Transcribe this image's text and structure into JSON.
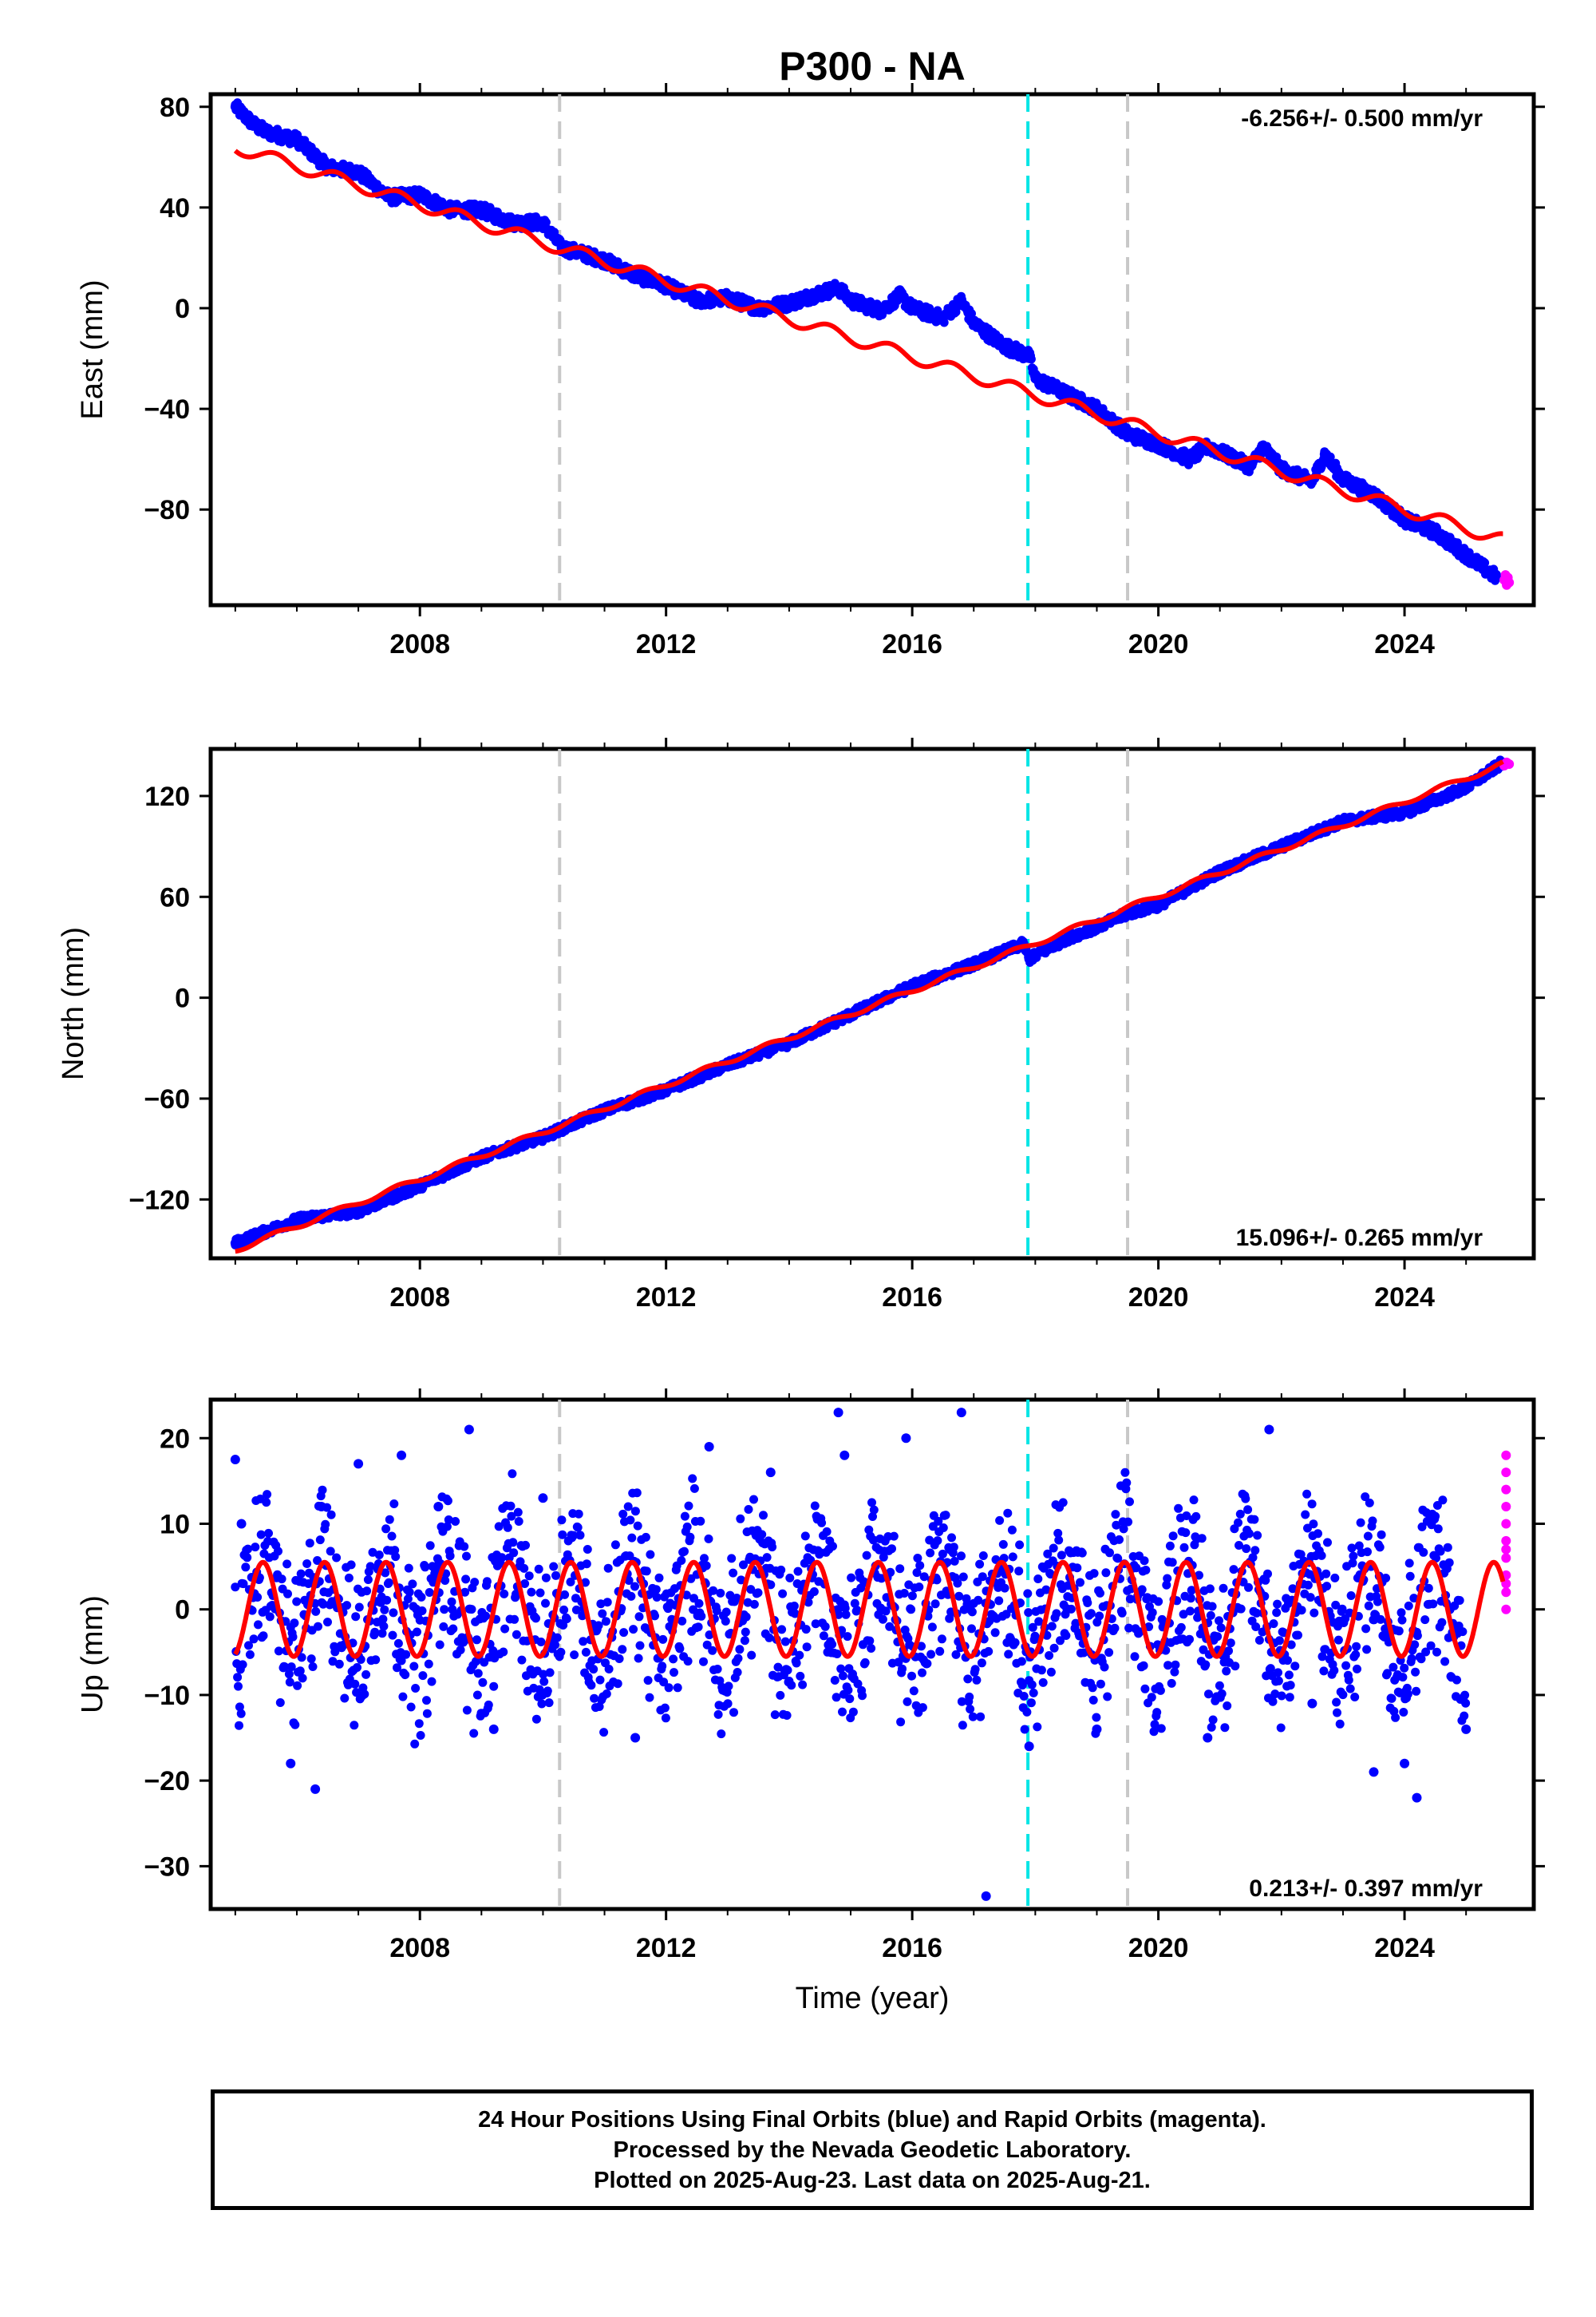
{
  "title": "P300 - NA",
  "caption": [
    "24 Hour Positions Using Final Orbits (blue) and Rapid Orbits (magenta).",
    "Processed by the Nevada Geodetic Laboratory.",
    "Plotted on 2025-Aug-23. Last data on 2025-Aug-21."
  ],
  "colors": {
    "final": "#0000ff",
    "rapid": "#ff00ff",
    "model": "#ff0000",
    "equipment_change": "#c8c8c8",
    "earthquake": "#00e5e5"
  },
  "event_lines": [
    {
      "x": 2010.27,
      "kind": "equipment_change"
    },
    {
      "x": 2017.88,
      "kind": "earthquake"
    },
    {
      "x": 2019.5,
      "kind": "equipment_change"
    }
  ],
  "chart_data": [
    {
      "type": "scatter",
      "name": "east",
      "ylabel": "East (mm)",
      "xlabel": "",
      "xlim": [
        2004.6,
        2026.1
      ],
      "ylim": [
        -118,
        85
      ],
      "xticks": [
        2008,
        2012,
        2016,
        2020,
        2024
      ],
      "yticks": [
        80,
        40,
        0,
        -40,
        -80
      ],
      "rate_text": "-6.256+/- 0.500 mm/yr",
      "rate_position": "top-right",
      "series": [
        {
          "role": "final",
          "x": [
            2005.0,
            2005.3,
            2005.5,
            2006.0,
            2006.5,
            2007.0,
            2007.5,
            2008.0,
            2008.5,
            2009.0,
            2009.5,
            2010.0,
            2010.3,
            2010.6,
            2011.0,
            2011.5,
            2012.0,
            2012.5,
            2013.0,
            2013.5,
            2014.0,
            2014.5,
            2014.8,
            2015.0,
            2015.5,
            2015.8,
            2016.0,
            2016.5,
            2016.8,
            2017.0,
            2017.5,
            2017.9,
            2018.0,
            2018.5,
            2019.0,
            2019.5,
            2020.0,
            2020.5,
            2020.8,
            2021.0,
            2021.5,
            2021.7,
            2022.0,
            2022.5,
            2022.7,
            2023.0,
            2023.5,
            2024.0,
            2024.5,
            2025.0,
            2025.5
          ],
          "y": [
            80,
            73,
            70,
            67,
            56,
            54,
            44,
            45,
            39,
            39,
            34,
            34,
            24,
            22,
            19,
            13,
            9,
            3,
            4,
            0,
            2,
            6,
            8,
            3,
            -1,
            5,
            0,
            -4,
            3,
            -6,
            -15,
            -19,
            -28,
            -34,
            -40,
            -50,
            -54,
            -60,
            -55,
            -57,
            -63,
            -55,
            -64,
            -69,
            -58,
            -68,
            -74,
            -84,
            -89,
            -98,
            -107
          ]
        },
        {
          "role": "rapid",
          "x": [
            2025.62,
            2025.64,
            2025.66,
            2025.68,
            2025.7
          ],
          "y": [
            -108,
            -106,
            -110,
            -107,
            -109
          ]
        },
        {
          "role": "model",
          "x": [
            2005.0,
            2025.6
          ],
          "y_trend": [
            64,
            -92
          ],
          "seasonal_amplitude": 2.5
        }
      ]
    },
    {
      "type": "scatter",
      "name": "north",
      "ylabel": "North (mm)",
      "xlabel": "",
      "xlim": [
        2004.6,
        2026.1
      ],
      "ylim": [
        -155,
        148
      ],
      "xticks": [
        2008,
        2012,
        2016,
        2020,
        2024
      ],
      "yticks": [
        120,
        60,
        0,
        -60,
        -120
      ],
      "rate_text": "15.096+/- 0.265 mm/yr",
      "rate_position": "bottom-right",
      "series": [
        {
          "role": "final",
          "x": [
            2005.0,
            2006.0,
            2007.0,
            2008.0,
            2009.0,
            2010.0,
            2010.3,
            2011.0,
            2012.0,
            2013.0,
            2014.0,
            2015.0,
            2016.0,
            2017.0,
            2017.8,
            2017.9,
            2018.5,
            2019.0,
            2019.5,
            2020.0,
            2021.0,
            2022.0,
            2023.0,
            2024.0,
            2025.0,
            2025.6
          ],
          "y": [
            -146,
            -132,
            -127,
            -112,
            -95,
            -83,
            -78,
            -67,
            -55,
            -40,
            -27,
            -10,
            7,
            20,
            32,
            23,
            35,
            42,
            50,
            55,
            75,
            90,
            105,
            110,
            125,
            140
          ]
        },
        {
          "role": "rapid",
          "x": [
            2025.62,
            2025.66,
            2025.7
          ],
          "y": [
            138,
            140,
            139
          ]
        },
        {
          "role": "model",
          "x": [
            2005.0,
            2025.6
          ],
          "y_trend": [
            -150,
            139
          ],
          "seasonal_amplitude": 1.5
        }
      ]
    },
    {
      "type": "scatter",
      "name": "up",
      "ylabel": "Up (mm)",
      "xlabel": "Time (year)",
      "xlim": [
        2004.6,
        2026.1
      ],
      "ylim": [
        -35,
        24.5
      ],
      "xticks": [
        2008,
        2012,
        2016,
        2020,
        2024
      ],
      "yticks": [
        20,
        10,
        0,
        -10,
        -20,
        -30
      ],
      "rate_text": "0.213+/- 0.397 mm/yr",
      "rate_position": "bottom-right",
      "series": [
        {
          "role": "final",
          "x": [
            2005.0,
            2005.1,
            2005.9,
            2006.3,
            2006.4,
            2007.0,
            2007.7,
            2008.3,
            2008.8,
            2009.2,
            2010.0,
            2011.5,
            2012.7,
            2013.7,
            2014.8,
            2014.9,
            2015.9,
            2016.8,
            2017.2,
            2017.9,
            2019.0,
            2020.8,
            2021.8,
            2022.5,
            2023.5,
            2024.0,
            2024.2,
            2025.0
          ],
          "y": [
            17.5,
            10,
            -18,
            -21,
            12,
            17,
            18,
            12,
            21,
            -14,
            13,
            -15,
            19,
            16,
            23,
            18,
            20,
            23,
            -33.5,
            -16,
            -14,
            -15,
            21,
            -11,
            -19,
            -18,
            -22,
            -14
          ]
        },
        {
          "role": "rapid",
          "x": [
            2025.65,
            2025.65,
            2025.65,
            2025.65,
            2025.65,
            2025.65,
            2025.65,
            2025.65,
            2025.65,
            2025.65,
            2025.65,
            2025.65
          ],
          "y": [
            18,
            16,
            14,
            12,
            10,
            8,
            7,
            6,
            4,
            3,
            2,
            0
          ]
        },
        {
          "role": "model",
          "x": [
            2005.0,
            2025.6
          ],
          "y_trend": [
            0,
            0
          ],
          "seasonal_amplitude": 5.5
        }
      ]
    }
  ]
}
